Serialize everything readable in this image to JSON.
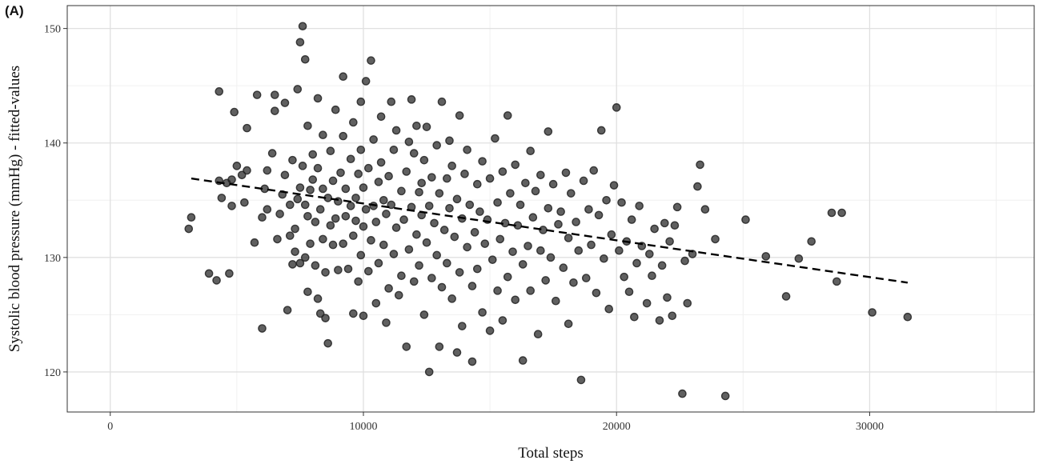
{
  "panel_label": "(A)",
  "chart_data": {
    "type": "scatter",
    "xlabel": "Total steps",
    "ylabel": "Systolic blood pressure (mmHg) - fitted-values",
    "xlim": [
      -1700,
      36500
    ],
    "ylim": [
      116.5,
      152
    ],
    "x_ticks": [
      0,
      10000,
      20000,
      30000
    ],
    "y_ticks": [
      120,
      130,
      140,
      150
    ],
    "grid": true,
    "point_color": "#222222",
    "trend": {
      "style": "dashed",
      "color": "#000000",
      "x": [
        3200,
        31500
      ],
      "y": [
        136.9,
        127.8
      ]
    },
    "points": [
      [
        3100,
        132.5
      ],
      [
        3200,
        133.5
      ],
      [
        3900,
        128.6
      ],
      [
        4200,
        128.0
      ],
      [
        4300,
        144.5
      ],
      [
        4300,
        136.7
      ],
      [
        4400,
        135.2
      ],
      [
        4600,
        136.5
      ],
      [
        4700,
        128.6
      ],
      [
        4800,
        134.5
      ],
      [
        4800,
        136.8
      ],
      [
        4900,
        142.7
      ],
      [
        5000,
        138.0
      ],
      [
        5200,
        137.2
      ],
      [
        5300,
        134.8
      ],
      [
        5400,
        141.3
      ],
      [
        5400,
        137.6
      ],
      [
        5700,
        131.3
      ],
      [
        5800,
        144.2
      ],
      [
        6000,
        123.8
      ],
      [
        6000,
        133.5
      ],
      [
        6100,
        136.0
      ],
      [
        6200,
        134.2
      ],
      [
        6200,
        137.6
      ],
      [
        6400,
        139.1
      ],
      [
        6500,
        142.8
      ],
      [
        6500,
        144.2
      ],
      [
        6600,
        131.6
      ],
      [
        6700,
        133.8
      ],
      [
        6800,
        135.5
      ],
      [
        6900,
        137.2
      ],
      [
        6900,
        143.5
      ],
      [
        7000,
        125.4
      ],
      [
        7100,
        131.9
      ],
      [
        7100,
        134.6
      ],
      [
        7200,
        129.4
      ],
      [
        7200,
        138.5
      ],
      [
        7300,
        132.5
      ],
      [
        7300,
        130.5
      ],
      [
        7400,
        135.1
      ],
      [
        7400,
        144.7
      ],
      [
        7500,
        129.5
      ],
      [
        7500,
        136.1
      ],
      [
        7500,
        148.8
      ],
      [
        7600,
        150.2
      ],
      [
        7600,
        138.0
      ],
      [
        7700,
        134.6
      ],
      [
        7700,
        130.0
      ],
      [
        7700,
        147.3
      ],
      [
        7800,
        127.0
      ],
      [
        7800,
        133.6
      ],
      [
        7800,
        141.5
      ],
      [
        7900,
        131.2
      ],
      [
        7900,
        135.9
      ],
      [
        8000,
        139.0
      ],
      [
        8000,
        136.8
      ],
      [
        8100,
        133.1
      ],
      [
        8100,
        129.3
      ],
      [
        8200,
        126.4
      ],
      [
        8200,
        137.8
      ],
      [
        8200,
        143.9
      ],
      [
        8300,
        125.1
      ],
      [
        8300,
        134.2
      ],
      [
        8400,
        131.6
      ],
      [
        8400,
        136.0
      ],
      [
        8400,
        140.7
      ],
      [
        8500,
        124.7
      ],
      [
        8500,
        128.7
      ],
      [
        8600,
        135.2
      ],
      [
        8600,
        122.5
      ],
      [
        8700,
        132.8
      ],
      [
        8700,
        139.3
      ],
      [
        8800,
        131.1
      ],
      [
        8800,
        136.7
      ],
      [
        8900,
        133.4
      ],
      [
        8900,
        142.9
      ],
      [
        9000,
        128.9
      ],
      [
        9000,
        134.9
      ],
      [
        9100,
        137.4
      ],
      [
        9200,
        131.2
      ],
      [
        9200,
        140.6
      ],
      [
        9200,
        145.8
      ],
      [
        9300,
        136.0
      ],
      [
        9300,
        133.6
      ],
      [
        9400,
        129.0
      ],
      [
        9500,
        134.5
      ],
      [
        9500,
        138.6
      ],
      [
        9600,
        125.1
      ],
      [
        9600,
        131.9
      ],
      [
        9600,
        141.8
      ],
      [
        9700,
        135.2
      ],
      [
        9700,
        133.2
      ],
      [
        9800,
        127.9
      ],
      [
        9800,
        137.3
      ],
      [
        9900,
        130.2
      ],
      [
        9900,
        139.4
      ],
      [
        9900,
        143.6
      ],
      [
        10000,
        124.9
      ],
      [
        10000,
        132.7
      ],
      [
        10000,
        136.1
      ],
      [
        10100,
        134.2
      ],
      [
        10100,
        145.4
      ],
      [
        10200,
        128.8
      ],
      [
        10200,
        137.8
      ],
      [
        10300,
        147.2
      ],
      [
        10300,
        131.5
      ],
      [
        10400,
        134.5
      ],
      [
        10400,
        140.3
      ],
      [
        10500,
        126.0
      ],
      [
        10500,
        133.1
      ],
      [
        10600,
        129.5
      ],
      [
        10600,
        136.6
      ],
      [
        10700,
        138.3
      ],
      [
        10700,
        142.3
      ],
      [
        10800,
        135.0
      ],
      [
        10800,
        131.1
      ],
      [
        10900,
        133.8
      ],
      [
        10900,
        124.3
      ],
      [
        11000,
        127.3
      ],
      [
        11000,
        137.1
      ],
      [
        11100,
        143.6
      ],
      [
        11100,
        134.6
      ],
      [
        11200,
        130.3
      ],
      [
        11200,
        139.4
      ],
      [
        11300,
        132.6
      ],
      [
        11300,
        141.1
      ],
      [
        11400,
        126.7
      ],
      [
        11500,
        135.8
      ],
      [
        11500,
        128.4
      ],
      [
        11600,
        133.3
      ],
      [
        11700,
        137.5
      ],
      [
        11700,
        122.2
      ],
      [
        11800,
        140.1
      ],
      [
        11800,
        130.7
      ],
      [
        11900,
        143.8
      ],
      [
        11900,
        134.4
      ],
      [
        12000,
        127.9
      ],
      [
        12000,
        139.1
      ],
      [
        12100,
        132.0
      ],
      [
        12100,
        141.5
      ],
      [
        12200,
        135.7
      ],
      [
        12200,
        129.3
      ],
      [
        12300,
        133.7
      ],
      [
        12300,
        136.5
      ],
      [
        12400,
        125.0
      ],
      [
        12400,
        138.5
      ],
      [
        12500,
        131.3
      ],
      [
        12500,
        141.4
      ],
      [
        12600,
        134.5
      ],
      [
        12600,
        120.0
      ],
      [
        12700,
        128.2
      ],
      [
        12700,
        137.0
      ],
      [
        12800,
        133.0
      ],
      [
        12900,
        130.2
      ],
      [
        12900,
        139.8
      ],
      [
        13000,
        135.6
      ],
      [
        13000,
        122.2
      ],
      [
        13100,
        127.4
      ],
      [
        13100,
        143.6
      ],
      [
        13200,
        132.4
      ],
      [
        13300,
        136.9
      ],
      [
        13300,
        129.5
      ],
      [
        13400,
        134.3
      ],
      [
        13400,
        140.2
      ],
      [
        13500,
        126.4
      ],
      [
        13500,
        138.0
      ],
      [
        13600,
        131.8
      ],
      [
        13700,
        135.1
      ],
      [
        13700,
        121.7
      ],
      [
        13800,
        128.7
      ],
      [
        13800,
        142.4
      ],
      [
        13900,
        133.4
      ],
      [
        13900,
        124.0
      ],
      [
        14000,
        137.3
      ],
      [
        14100,
        130.9
      ],
      [
        14100,
        139.4
      ],
      [
        14200,
        134.6
      ],
      [
        14300,
        127.5
      ],
      [
        14300,
        120.9
      ],
      [
        14400,
        132.2
      ],
      [
        14500,
        136.4
      ],
      [
        14500,
        129.0
      ],
      [
        14600,
        134.0
      ],
      [
        14700,
        125.2
      ],
      [
        14700,
        138.4
      ],
      [
        14800,
        131.2
      ],
      [
        14900,
        133.3
      ],
      [
        15000,
        123.6
      ],
      [
        15000,
        136.9
      ],
      [
        15100,
        129.8
      ],
      [
        15200,
        140.4
      ],
      [
        15300,
        134.8
      ],
      [
        15300,
        127.1
      ],
      [
        15400,
        131.6
      ],
      [
        15500,
        137.5
      ],
      [
        15500,
        124.5
      ],
      [
        15600,
        133.0
      ],
      [
        15700,
        128.3
      ],
      [
        15700,
        142.4
      ],
      [
        15800,
        135.6
      ],
      [
        15900,
        130.5
      ],
      [
        16000,
        126.3
      ],
      [
        16000,
        138.1
      ],
      [
        16100,
        132.8
      ],
      [
        16200,
        134.6
      ],
      [
        16300,
        121.0
      ],
      [
        16300,
        129.4
      ],
      [
        16400,
        136.5
      ],
      [
        16500,
        131.0
      ],
      [
        16600,
        127.1
      ],
      [
        16600,
        139.3
      ],
      [
        16700,
        133.5
      ],
      [
        16800,
        135.8
      ],
      [
        16900,
        123.3
      ],
      [
        17000,
        130.6
      ],
      [
        17000,
        137.2
      ],
      [
        17100,
        132.4
      ],
      [
        17200,
        128.0
      ],
      [
        17300,
        134.3
      ],
      [
        17300,
        141.0
      ],
      [
        17400,
        130.0
      ],
      [
        17500,
        136.4
      ],
      [
        17600,
        126.2
      ],
      [
        17700,
        132.9
      ],
      [
        17800,
        134.0
      ],
      [
        17900,
        129.1
      ],
      [
        18000,
        137.4
      ],
      [
        18100,
        131.7
      ],
      [
        18100,
        124.2
      ],
      [
        18200,
        135.6
      ],
      [
        18300,
        127.8
      ],
      [
        18400,
        133.1
      ],
      [
        18500,
        130.6
      ],
      [
        18600,
        119.3
      ],
      [
        18700,
        136.7
      ],
      [
        18800,
        128.2
      ],
      [
        18900,
        134.2
      ],
      [
        19000,
        131.1
      ],
      [
        19100,
        137.6
      ],
      [
        19200,
        126.9
      ],
      [
        19300,
        133.7
      ],
      [
        19400,
        141.1
      ],
      [
        19500,
        129.9
      ],
      [
        19600,
        135.0
      ],
      [
        19700,
        125.5
      ],
      [
        19800,
        132.0
      ],
      [
        19900,
        136.3
      ],
      [
        20000,
        143.1
      ],
      [
        20100,
        130.6
      ],
      [
        20200,
        134.8
      ],
      [
        20300,
        128.3
      ],
      [
        20400,
        131.4
      ],
      [
        20500,
        127.0
      ],
      [
        20600,
        133.3
      ],
      [
        20700,
        124.8
      ],
      [
        20800,
        129.5
      ],
      [
        20900,
        134.5
      ],
      [
        21000,
        131.0
      ],
      [
        21200,
        126.0
      ],
      [
        21300,
        130.3
      ],
      [
        21400,
        128.4
      ],
      [
        21500,
        132.5
      ],
      [
        21700,
        124.5
      ],
      [
        21800,
        129.3
      ],
      [
        21900,
        133.0
      ],
      [
        22000,
        126.5
      ],
      [
        22100,
        131.4
      ],
      [
        22200,
        124.9
      ],
      [
        22300,
        132.8
      ],
      [
        22400,
        134.4
      ],
      [
        22600,
        118.1
      ],
      [
        22700,
        129.7
      ],
      [
        22800,
        126.0
      ],
      [
        23000,
        130.3
      ],
      [
        23200,
        136.2
      ],
      [
        23300,
        138.1
      ],
      [
        23500,
        134.2
      ],
      [
        23900,
        131.6
      ],
      [
        24300,
        117.9
      ],
      [
        25100,
        133.3
      ],
      [
        25900,
        130.1
      ],
      [
        26700,
        126.6
      ],
      [
        27200,
        129.9
      ],
      [
        27700,
        131.4
      ],
      [
        28500,
        133.9
      ],
      [
        28700,
        127.9
      ],
      [
        28900,
        133.9
      ],
      [
        30100,
        125.2
      ],
      [
        31500,
        124.8
      ]
    ]
  }
}
